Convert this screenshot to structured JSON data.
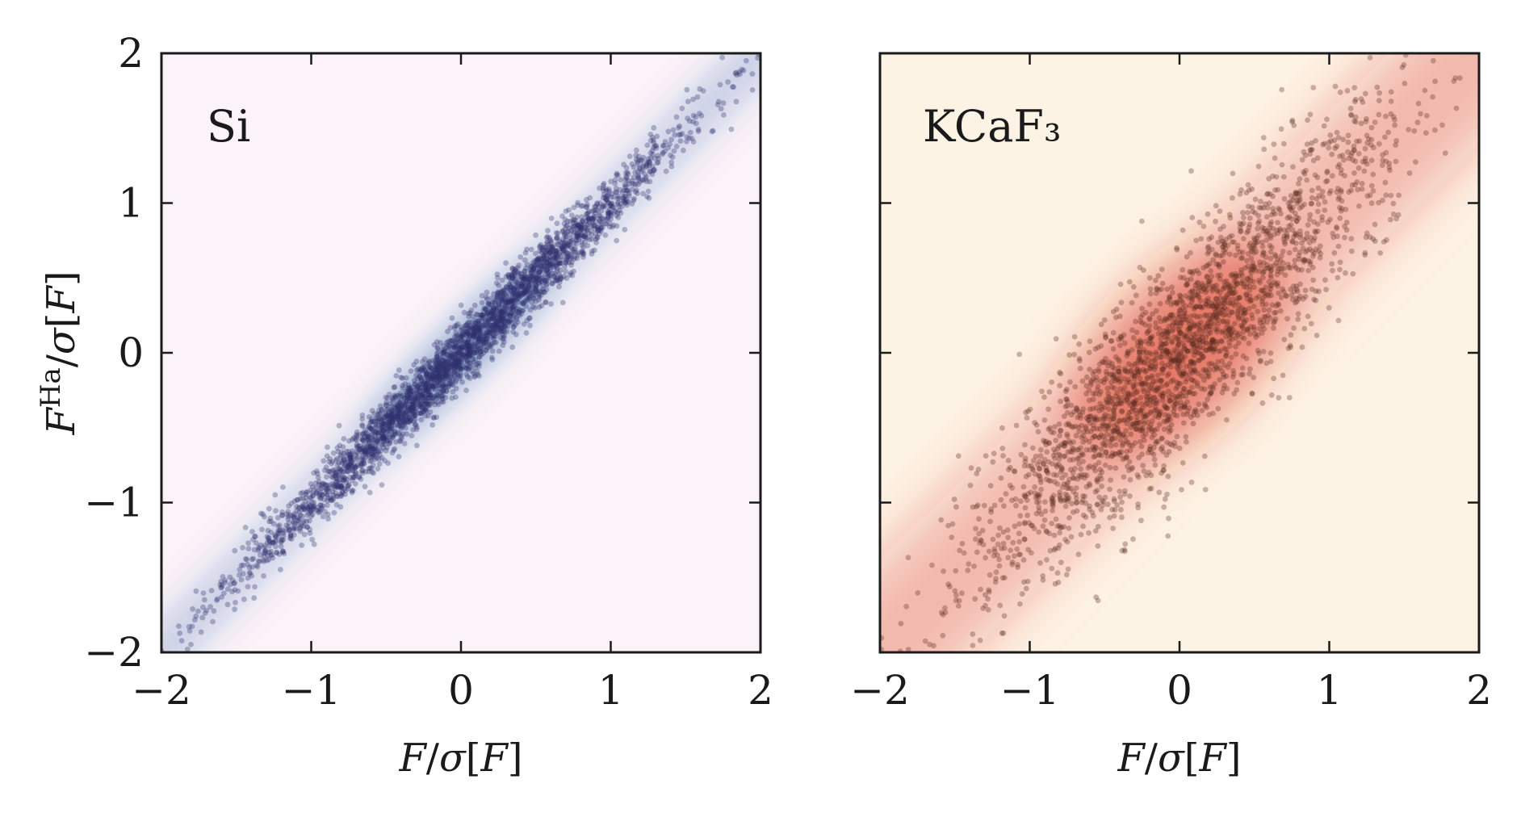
{
  "chart_data": [
    {
      "type": "scatter",
      "panel_label": "Si",
      "xlabel": "F/σ[F]",
      "ylabel": "F^Ha/σ[F]",
      "xlim": [
        -2,
        2
      ],
      "ylim": [
        -2,
        2
      ],
      "xticks": [
        "−2",
        "−1",
        "0",
        "1",
        "2"
      ],
      "yticks": [
        "−2",
        "−1",
        "0",
        "1",
        "2"
      ],
      "background_color": "#fcf3f8",
      "density_color": "#1f5fa8",
      "point_color": "#2e2f6e",
      "n_points": 3000,
      "trend": {
        "slope": 1.0,
        "intercept": 0.0,
        "spread": 0.1
      },
      "x_spread": 0.75
    },
    {
      "type": "scatter",
      "panel_label": "KCaF₃",
      "xlabel": "F/σ[F]",
      "ylabel": "",
      "xlim": [
        -2,
        2
      ],
      "ylim": [
        -2,
        2
      ],
      "xticks": [
        "−2",
        "−1",
        "0",
        "1",
        "2"
      ],
      "yticks": [],
      "background_color": "#fdf3e4",
      "density_color": "#d6241a",
      "point_color": "#5a2a1e",
      "n_points": 2500,
      "trend": {
        "slope": 1.0,
        "intercept": 0.0,
        "spread": 0.33
      },
      "x_spread": 0.72
    }
  ]
}
